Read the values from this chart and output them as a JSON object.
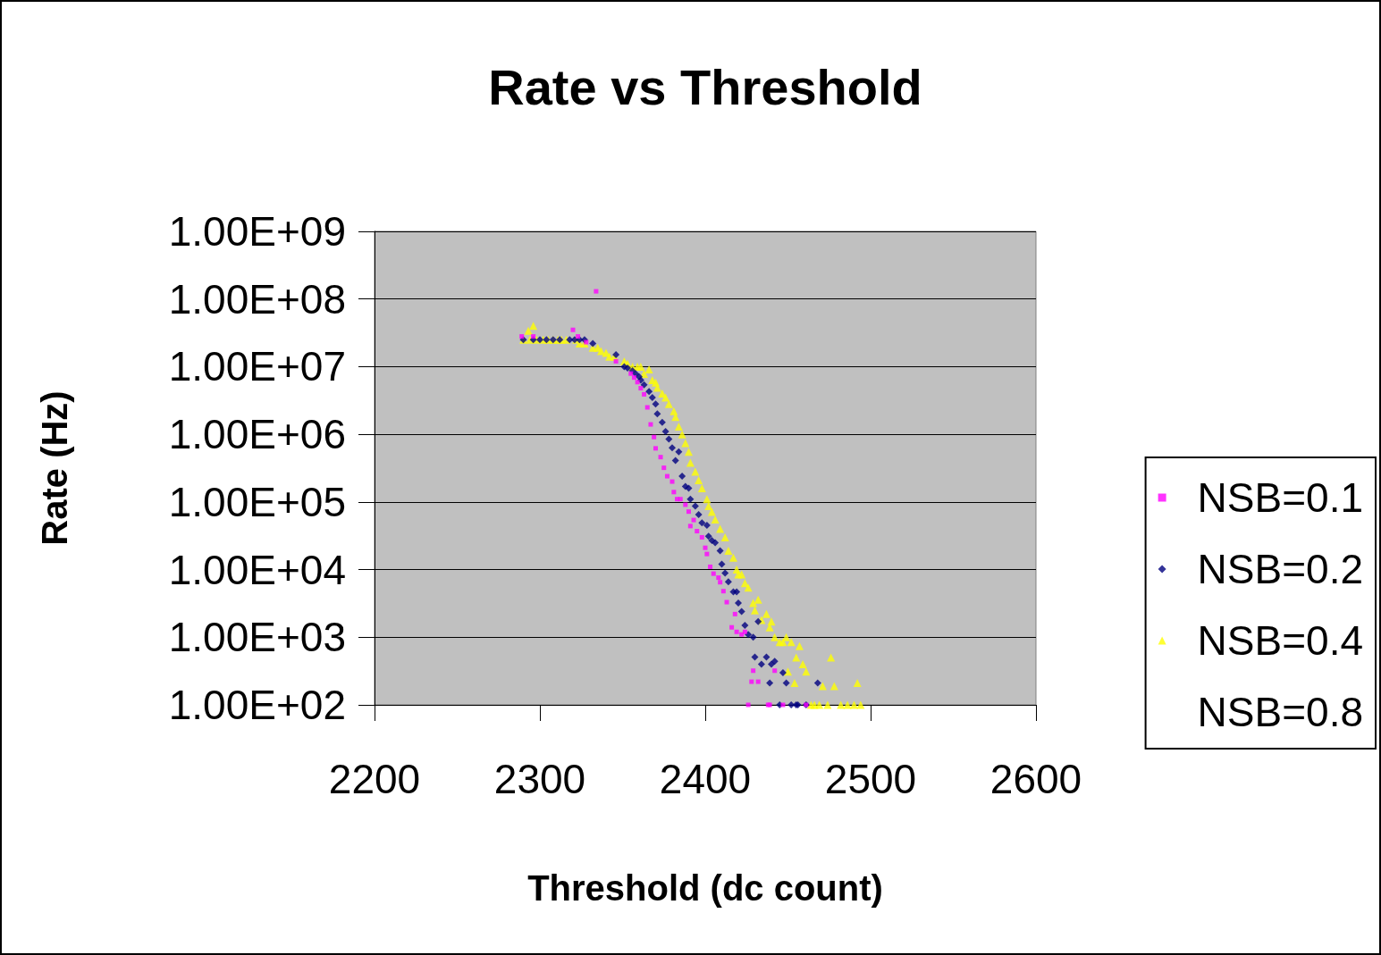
{
  "chart_data": {
    "type": "scatter",
    "title": "Rate vs Threshold",
    "xlabel": "Threshold (dc count)",
    "ylabel": "Rate (Hz)",
    "xlim": [
      2200,
      2600
    ],
    "xticks": [
      2200,
      2300,
      2400,
      2500,
      2600
    ],
    "ylim": [
      100,
      1000000000
    ],
    "yticks": [
      {
        "value": 100,
        "label": "1.00E+02"
      },
      {
        "value": 1000,
        "label": "1.00E+03"
      },
      {
        "value": 10000,
        "label": "1.00E+04"
      },
      {
        "value": 100000,
        "label": "1.00E+05"
      },
      {
        "value": 1000000,
        "label": "1.00E+06"
      },
      {
        "value": 10000000,
        "label": "1.00E+07"
      },
      {
        "value": 100000000,
        "label": "1.00E+08"
      },
      {
        "value": 1000000000,
        "label": "1.00E+09"
      }
    ],
    "log": "y",
    "grid": "y",
    "legend": "right",
    "series": [
      {
        "name": "NSB=0.1",
        "color": "#ff00ff",
        "marker": "square",
        "x": [
          2289,
          2296,
          2320,
          2323,
          2328,
          2334,
          2346,
          2355,
          2357,
          2359,
          2361,
          2363,
          2365,
          2367,
          2369,
          2370,
          2373,
          2375,
          2377,
          2380,
          2381,
          2383,
          2385,
          2388,
          2390,
          2391,
          2393,
          2395,
          2398,
          2400,
          2401,
          2403,
          2405,
          2408,
          2409,
          2411,
          2413,
          2416,
          2418,
          2419,
          2422,
          2424,
          2426,
          2428,
          2429,
          2432,
          2438,
          2439,
          2442,
          2447,
          2461
        ],
        "values": [
          28000000.0,
          28000000.0,
          35000000.0,
          28000000.0,
          23000000.0,
          130000000.0,
          12000000.0,
          7900000.0,
          6900000.0,
          5900000.0,
          4800000.0,
          3900000.0,
          2500000.0,
          1400000.0,
          910000.0,
          620000.0,
          460000.0,
          320000.0,
          240000.0,
          200000.0,
          140000.0,
          110000.0,
          110000.0,
          91000.0,
          72000.0,
          44000.0,
          54000.0,
          37000.0,
          30000.0,
          21000.0,
          17000.0,
          11000.0,
          8700.0,
          7600.0,
          6500.0,
          4800.0,
          3300.0,
          1400.0,
          2200.0,
          1200.0,
          1100.0,
          1200.0,
          100,
          220,
          320,
          220,
          100,
          100,
          320,
          100,
          100
        ]
      },
      {
        "name": "NSB=0.2",
        "color": "#000080",
        "marker": "diamond",
        "x": [
          2290,
          2296,
          2300,
          2304,
          2308,
          2312,
          2318,
          2321,
          2324,
          2327,
          2332,
          2346,
          2351,
          2353,
          2356,
          2358,
          2360,
          2361,
          2363,
          2366,
          2368,
          2370,
          2371,
          2374,
          2376,
          2378,
          2380,
          2382,
          2384,
          2386,
          2388,
          2390,
          2391,
          2394,
          2396,
          2398,
          2401,
          2402,
          2404,
          2406,
          2409,
          2410,
          2412,
          2414,
          2417,
          2419,
          2420,
          2422,
          2424,
          2426,
          2429,
          2432,
          2430,
          2434,
          2437,
          2439,
          2440,
          2442,
          2447,
          2449,
          2468,
          2445,
          2452,
          2455,
          2456,
          2461
        ],
        "values": [
          25000000.0,
          25000000.0,
          25000000.0,
          25000000.0,
          25000000.0,
          25000000.0,
          25000000.0,
          25000000.0,
          25000000.0,
          25000000.0,
          22000000.0,
          15000000.0,
          10000000.0,
          9500000.0,
          8700000.0,
          7800000.0,
          7100000.0,
          6300000.0,
          5400000.0,
          4300000.0,
          3500000.0,
          2800000.0,
          2000000.0,
          1500000.0,
          1100000.0,
          850000.0,
          630000.0,
          410000.0,
          550000.0,
          240000.0,
          170000.0,
          160000.0,
          110000.0,
          87000.0,
          65000.0,
          49000.0,
          45000.0,
          31000.0,
          27000.0,
          25000.0,
          19000.0,
          12000.0,
          8900.0,
          6600.0,
          4700.0,
          4700.0,
          3200.0,
          2400.0,
          1500.0,
          1100.0,
          1000.0,
          1700.0,
          510,
          400,
          510,
          210,
          400,
          440,
          300,
          210,
          210,
          100,
          100,
          100,
          100,
          100
        ]
      },
      {
        "name": "NSB=0.4",
        "color": "#ffff00",
        "marker": "triangle",
        "x": [
          2290,
          2293,
          2294,
          2296,
          2298,
          2302,
          2305,
          2308,
          2311,
          2313,
          2316,
          2322,
          2324,
          2327,
          2332,
          2335,
          2337,
          2340,
          2342,
          2345,
          2351,
          2353,
          2356,
          2359,
          2361,
          2363,
          2366,
          2368,
          2370,
          2371,
          2374,
          2376,
          2378,
          2381,
          2382,
          2384,
          2386,
          2388,
          2390,
          2391,
          2394,
          2396,
          2398,
          2401,
          2402,
          2404,
          2406,
          2409,
          2412,
          2414,
          2417,
          2419,
          2420,
          2422,
          2424,
          2426,
          2429,
          2430,
          2432,
          2434,
          2437,
          2439,
          2440,
          2442,
          2445,
          2447,
          2449,
          2450,
          2452,
          2454,
          2455,
          2457,
          2459,
          2461,
          2471,
          2476,
          2478,
          2492,
          2464,
          2466,
          2469,
          2474,
          2482,
          2486,
          2490,
          2494
        ],
        "values": [
          25000000.0,
          34000000.0,
          25000000.0,
          40000000.0,
          25000000.0,
          25000000.0,
          25000000.0,
          25000000.0,
          25000000.0,
          25000000.0,
          25000000.0,
          25000000.0,
          22000000.0,
          22000000.0,
          19000000.0,
          19000000.0,
          17000000.0,
          16000000.0,
          14000000.0,
          14000000.0,
          12000000.0,
          11000000.0,
          10000000.0,
          10000000.0,
          10000000.0,
          7800000.0,
          9100000.0,
          6300000.0,
          5800000.0,
          4900000.0,
          4000000.0,
          3500000.0,
          2800000.0,
          2200000.0,
          1800000.0,
          1300000.0,
          1000000.0,
          740000.0,
          550000.0,
          380000.0,
          280000.0,
          210000.0,
          160000.0,
          110000.0,
          87000.0,
          71000.0,
          55000.0,
          40000.0,
          30000.0,
          19000.0,
          15000.0,
          10000.0,
          8500.0,
          8500.0,
          6300.0,
          5400.0,
          3200.0,
          2500.0,
          3600.0,
          1800.0,
          2200.0,
          1400.0,
          1700.0,
          1000.0,
          850,
          850,
          1000.0,
          310,
          850,
          210,
          500,
          740,
          400,
          310,
          190,
          500,
          190,
          210,
          100,
          100,
          100,
          100,
          100,
          100,
          100,
          100
        ]
      },
      {
        "name": "NSB=0.8",
        "marker": "none"
      }
    ]
  }
}
